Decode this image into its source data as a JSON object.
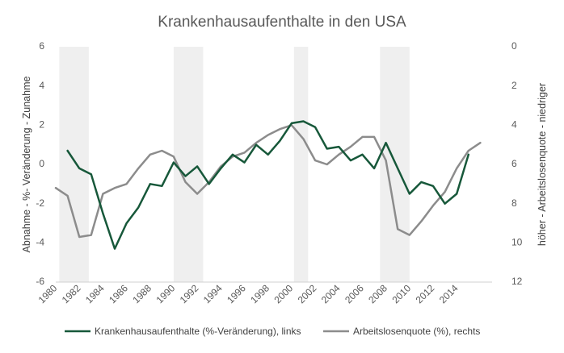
{
  "chart_data": {
    "type": "line",
    "title": "Krankenhausaufenthalte in den USA",
    "ylabel_left": "Abnahme - %- Veränderung - Zunahme",
    "ylabel_right": "höher - Arbeitslosenquote - niedriger",
    "xlim": [
      1980,
      2017
    ],
    "ylim_left": [
      -6,
      6
    ],
    "ylim_right": [
      0,
      12
    ],
    "right_axis_inverted": true,
    "grid": false,
    "legend_position": "bottom",
    "x_ticks": [
      "1980",
      "1982",
      "1984",
      "1986",
      "1988",
      "1990",
      "1992",
      "1994",
      "1996",
      "1998",
      "2000",
      "2002",
      "2004",
      "2006",
      "2008",
      "2010",
      "2012",
      "2014"
    ],
    "y_ticks_left": [
      "6",
      "4",
      "2",
      "0",
      "-2",
      "-4",
      "-6"
    ],
    "y_ticks_right": [
      "0",
      "2",
      "4",
      "6",
      "8",
      "10",
      "12"
    ],
    "recession_bands": [
      [
        1980.3,
        1982.8
      ],
      [
        1990.0,
        1992.5
      ],
      [
        2000.2,
        2001.4
      ],
      [
        2007.5,
        2010.0
      ]
    ],
    "series": [
      {
        "name": "Krankenhausaufenthalte (%-Veränderung), links",
        "axis": "left",
        "color": "#17583a",
        "x": [
          1981,
          1982,
          1983,
          1984,
          1985,
          1986,
          1987,
          1988,
          1989,
          1990,
          1991,
          1992,
          1993,
          1994,
          1995,
          1996,
          1997,
          1998,
          1999,
          2000,
          2001,
          2002,
          2003,
          2004,
          2005,
          2006,
          2007,
          2008,
          2009,
          2010,
          2011,
          2012,
          2013,
          2014,
          2015
        ],
        "y": [
          0.7,
          -0.2,
          -0.5,
          -2.5,
          -4.3,
          -3.0,
          -2.2,
          -1.0,
          -1.1,
          0.1,
          -0.6,
          -0.1,
          -1.0,
          -0.2,
          0.5,
          0.1,
          1.0,
          0.5,
          1.2,
          2.1,
          2.2,
          1.9,
          0.8,
          0.9,
          0.2,
          0.5,
          -0.2,
          1.1,
          -0.2,
          -1.5,
          -0.9,
          -1.1,
          -2.0,
          -1.5,
          0.5
        ]
      },
      {
        "name": "Arbeitslosenquote (%), rechts",
        "axis": "right",
        "color": "#8c8c8c",
        "x": [
          1980,
          1981,
          1982,
          1983,
          1984,
          1985,
          1986,
          1987,
          1988,
          1989,
          1990,
          1991,
          1992,
          1993,
          1994,
          1995,
          1996,
          1997,
          1998,
          1999,
          2000,
          2001,
          2002,
          2003,
          2004,
          2005,
          2006,
          2007,
          2008,
          2009,
          2010,
          2011,
          2012,
          2013,
          2014,
          2015,
          2016
        ],
        "y": [
          7.2,
          7.6,
          9.7,
          9.6,
          7.5,
          7.2,
          7.0,
          6.2,
          5.5,
          5.3,
          5.6,
          6.9,
          7.5,
          6.9,
          6.1,
          5.6,
          5.4,
          4.9,
          4.5,
          4.2,
          4.0,
          4.7,
          5.8,
          6.0,
          5.5,
          5.1,
          4.6,
          4.6,
          5.8,
          9.3,
          9.6,
          8.9,
          8.1,
          7.4,
          6.2,
          5.3,
          4.9
        ]
      }
    ]
  }
}
